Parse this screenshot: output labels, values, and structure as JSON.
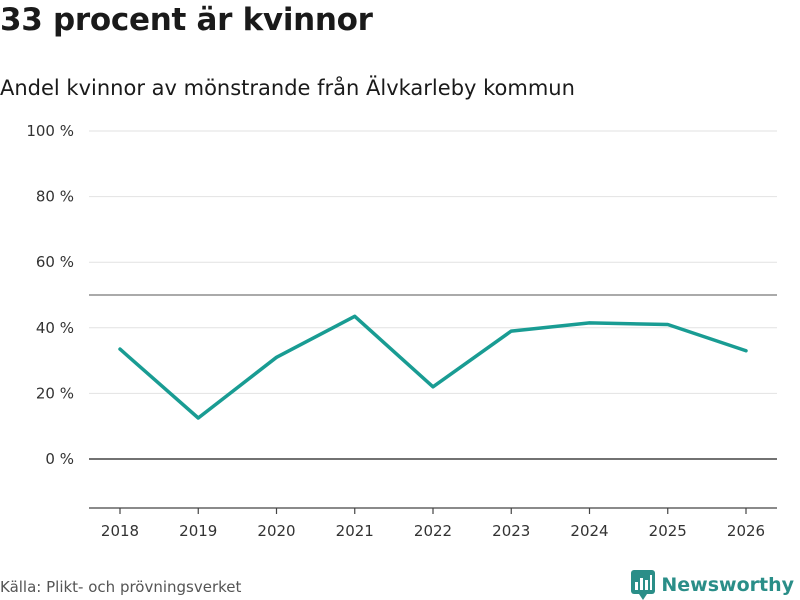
{
  "title": "33 procent är kvinnor",
  "subtitle": "Andel kvinnor av mönstrande från Älvkarleby kommun",
  "source": "Källa: Plikt- och prövningsverket",
  "brand": {
    "name": "Newsworthy",
    "icon": "newsworthy-logo-icon",
    "color": "#2a8e88"
  },
  "chart_data": {
    "type": "line",
    "x": [
      "2018",
      "2019",
      "2020",
      "2021",
      "2022",
      "2023",
      "2024",
      "2025",
      "2026"
    ],
    "series": [
      {
        "values": [
          33.5,
          12.5,
          31,
          43.5,
          22,
          39,
          41.5,
          41,
          33
        ]
      }
    ],
    "y_ticks": [
      0,
      20,
      40,
      60,
      80,
      100
    ],
    "y_tick_labels": [
      "0 %",
      "20 %",
      "40 %",
      "60 %",
      "80 %",
      "100 %"
    ],
    "ylim": [
      -15,
      100
    ],
    "reference_line": 50,
    "line_color": "#199c93",
    "grid": true,
    "legend": false
  }
}
